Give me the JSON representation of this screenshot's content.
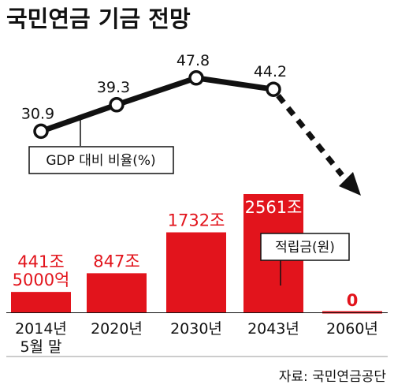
{
  "title": "국민연금 기금 전망",
  "source": "자료: 국민연금공단",
  "colors": {
    "bar": "#e2141c",
    "bar_label": "#e2141c",
    "line": "#111111",
    "text": "#111111"
  },
  "chart_data": [
    {
      "type": "line",
      "categories": [
        "2014년 5월 말",
        "2020년",
        "2030년",
        "2043년"
      ],
      "values": [
        30.9,
        39.3,
        47.8,
        44.2
      ],
      "value_labels": [
        "30.9",
        "39.3",
        "47.8",
        "44.2"
      ],
      "ylim": [
        20,
        60
      ],
      "annotation": "GDP 대비 비율(%)",
      "trend_arrow": "dashed downward arrow after 2043년"
    },
    {
      "type": "bar",
      "categories": [
        "2014년\n5월 말",
        "2020년",
        "2030년",
        "2043년",
        "2060년"
      ],
      "values": [
        441.5,
        847,
        1732,
        2561,
        0
      ],
      "unit": "조",
      "value_labels": [
        "441조\n5000억",
        "847조",
        "1732조",
        "2561조",
        "0"
      ],
      "annotation": "적립금(원)",
      "ylim": [
        0,
        2800
      ]
    }
  ]
}
